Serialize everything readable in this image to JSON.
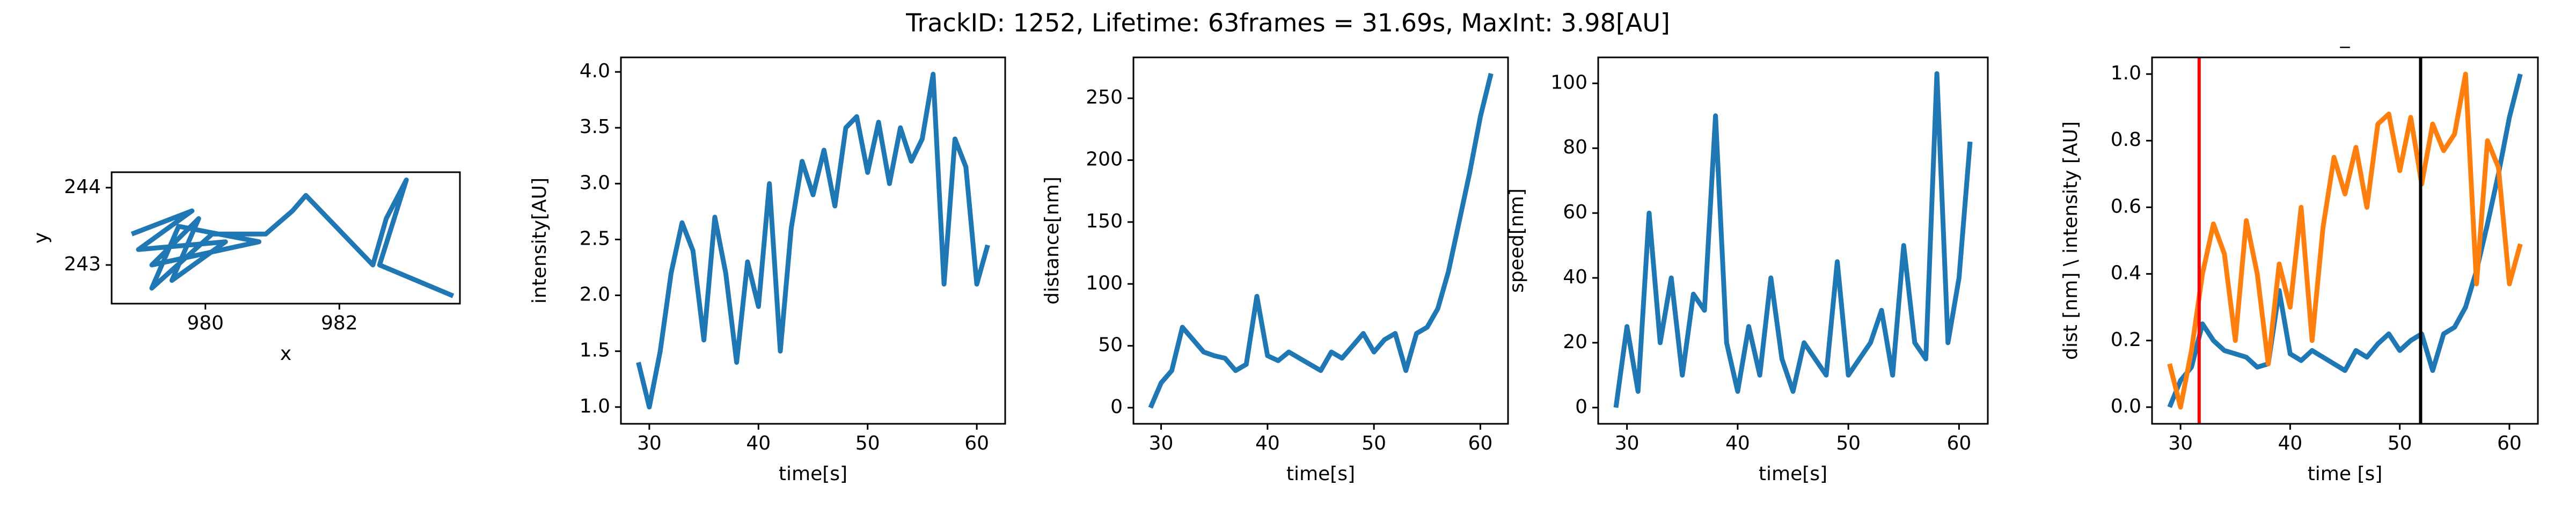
{
  "title": "TrackID: 1252, Lifetime: 63frames = 31.69s, MaxInt: 3.98[AU]",
  "chart_data": [
    {
      "type": "line",
      "xlabel": "x",
      "ylabel": "y",
      "x": [
        978.9,
        979.8,
        979.0,
        980.3,
        979.5,
        979.9,
        979.2,
        980.8,
        979.6,
        979.2,
        980.1,
        980.9,
        981.3,
        981.5,
        982.5,
        982.7,
        983.0,
        982.6,
        983.7
      ],
      "series": [
        {
          "color": "#1f77b4",
          "values": [
            243.4,
            243.7,
            243.2,
            243.3,
            242.8,
            243.6,
            243.0,
            243.3,
            243.5,
            242.7,
            243.4,
            243.4,
            243.7,
            243.9,
            243.0,
            243.6,
            244.1,
            243.0,
            242.6
          ]
        }
      ],
      "xlim": [
        978.6,
        983.8
      ],
      "ylim": [
        242.5,
        244.2
      ],
      "xticks": [
        980,
        982
      ],
      "yticks": [
        243,
        244
      ]
    },
    {
      "type": "line",
      "xlabel": "time[s]",
      "ylabel": "intensity[AU]",
      "x": [
        29,
        30,
        31,
        32,
        33,
        34,
        35,
        36,
        37,
        38,
        39,
        40,
        41,
        42,
        43,
        44,
        45,
        46,
        47,
        48,
        49,
        50,
        51,
        52,
        53,
        54,
        55,
        56,
        57,
        58,
        59,
        60,
        61
      ],
      "series": [
        {
          "color": "#1f77b4",
          "values": [
            1.4,
            1.0,
            1.5,
            2.2,
            2.65,
            2.4,
            1.6,
            2.7,
            2.2,
            1.4,
            2.3,
            1.9,
            3.0,
            1.5,
            2.6,
            3.2,
            2.9,
            3.3,
            2.8,
            3.5,
            3.6,
            3.1,
            3.55,
            3.0,
            3.5,
            3.2,
            3.4,
            3.98,
            2.1,
            3.4,
            3.15,
            2.1,
            2.45
          ]
        }
      ],
      "xlim": [
        27.4,
        62.6
      ],
      "ylim": [
        0.85,
        4.13
      ],
      "xticks": [
        30,
        40,
        50,
        60
      ],
      "yticks": [
        {
          "value": 1,
          "label": "1.0"
        },
        {
          "value": 1.5,
          "label": "1.5"
        },
        {
          "value": 2,
          "label": "2.0"
        },
        {
          "value": 2.5,
          "label": "2.5"
        },
        {
          "value": 3,
          "label": "3.0"
        },
        {
          "value": 3.5,
          "label": "3.5"
        },
        {
          "value": 4,
          "label": "4.0"
        }
      ]
    },
    {
      "type": "line",
      "xlabel": "time[s]",
      "ylabel": "distance[nm]",
      "x": [
        29,
        30,
        31,
        32,
        33,
        34,
        35,
        36,
        37,
        38,
        39,
        40,
        41,
        42,
        43,
        44,
        45,
        46,
        47,
        48,
        49,
        50,
        51,
        52,
        53,
        54,
        55,
        56,
        57,
        58,
        59,
        60,
        61
      ],
      "series": [
        {
          "color": "#1f77b4",
          "values": [
            0,
            20,
            30,
            65,
            55,
            45,
            42,
            40,
            30,
            35,
            90,
            42,
            38,
            45,
            40,
            35,
            30,
            45,
            40,
            50,
            60,
            45,
            55,
            60,
            30,
            60,
            65,
            80,
            110,
            150,
            190,
            235,
            270
          ]
        }
      ],
      "xlim": [
        27.4,
        62.6
      ],
      "ylim": [
        -13,
        283
      ],
      "xticks": [
        30,
        40,
        50,
        60
      ],
      "yticks": [
        0,
        50,
        100,
        150,
        200,
        250
      ]
    },
    {
      "type": "line",
      "xlabel": "time[s]",
      "ylabel": "speed[nm]",
      "x": [
        29,
        30,
        31,
        32,
        33,
        34,
        35,
        36,
        37,
        38,
        39,
        40,
        41,
        42,
        43,
        44,
        45,
        46,
        47,
        48,
        49,
        50,
        51,
        52,
        53,
        54,
        55,
        56,
        57,
        58,
        59,
        60,
        61
      ],
      "series": [
        {
          "color": "#1f77b4",
          "values": [
            0,
            25,
            5,
            60,
            20,
            40,
            10,
            35,
            30,
            90,
            20,
            5,
            25,
            10,
            40,
            15,
            5,
            20,
            15,
            10,
            45,
            10,
            15,
            20,
            30,
            10,
            50,
            20,
            15,
            103,
            20,
            40,
            82
          ]
        }
      ],
      "xlim": [
        27.4,
        62.6
      ],
      "ylim": [
        -5,
        108
      ],
      "xticks": [
        30,
        40,
        50,
        60
      ],
      "yticks": [
        0,
        20,
        40,
        60,
        80,
        100
      ]
    },
    {
      "type": "line",
      "title": "_",
      "xlabel": "time [s]",
      "ylabel": "dist [nm] \\ intensity [AU]",
      "x": [
        29,
        30,
        31,
        32,
        33,
        34,
        35,
        36,
        37,
        38,
        39,
        40,
        41,
        42,
        43,
        44,
        45,
        46,
        47,
        48,
        49,
        50,
        51,
        52,
        53,
        54,
        55,
        56,
        57,
        58,
        59,
        60,
        61
      ],
      "series": [
        {
          "color": "#1f77b4",
          "values": [
            0,
            0.08,
            0.12,
            0.25,
            0.2,
            0.17,
            0.16,
            0.15,
            0.12,
            0.13,
            0.35,
            0.16,
            0.14,
            0.17,
            0.15,
            0.13,
            0.11,
            0.17,
            0.15,
            0.19,
            0.22,
            0.17,
            0.2,
            0.22,
            0.11,
            0.22,
            0.24,
            0.3,
            0.41,
            0.55,
            0.7,
            0.87,
            1.0
          ]
        },
        {
          "color": "#ff7f0e",
          "values": [
            0.13,
            0,
            0.17,
            0.4,
            0.55,
            0.46,
            0.2,
            0.56,
            0.4,
            0.13,
            0.43,
            0.3,
            0.6,
            0.2,
            0.54,
            0.75,
            0.64,
            0.78,
            0.6,
            0.85,
            0.88,
            0.71,
            0.87,
            0.67,
            0.85,
            0.77,
            0.82,
            1.0,
            0.37,
            0.8,
            0.72,
            0.37,
            0.49
          ]
        }
      ],
      "vlines": [
        {
          "x": 31.7,
          "color": "#ff0000"
        },
        {
          "x": 51.9,
          "color": "#000000"
        }
      ],
      "xlim": [
        27.4,
        62.6
      ],
      "ylim": [
        -0.05,
        1.05
      ],
      "xticks": [
        30,
        40,
        50,
        60
      ],
      "yticks": [
        {
          "value": 0,
          "label": "0.0"
        },
        {
          "value": 0.2,
          "label": "0.2"
        },
        {
          "value": 0.4,
          "label": "0.4"
        },
        {
          "value": 0.6,
          "label": "0.6"
        },
        {
          "value": 0.8,
          "label": "0.8"
        },
        {
          "value": 1,
          "label": "1.0"
        }
      ]
    }
  ]
}
